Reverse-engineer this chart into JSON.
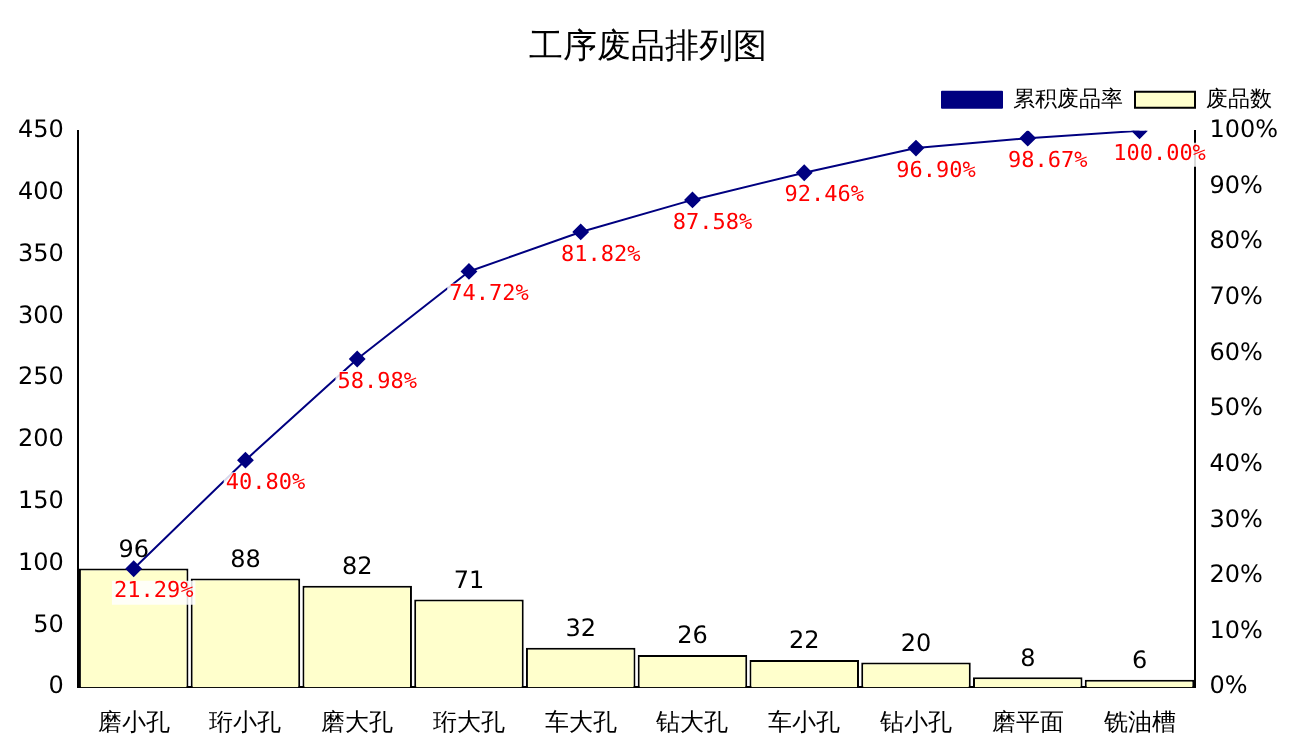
{
  "chart_data": {
    "type": "bar",
    "title": "工序废品排列图",
    "categories": [
      "磨小孔",
      "珩小孔",
      "磨大孔",
      "珩大孔",
      "车大孔",
      "钻大孔",
      "车小孔",
      "钻小孔",
      "磨平面",
      "铣油槽"
    ],
    "series": [
      {
        "name": "废品数",
        "color": "#ffffcc",
        "values": [
          96,
          88,
          82,
          71,
          32,
          26,
          22,
          20,
          8,
          6
        ],
        "value_labels": [
          "96",
          "88",
          "82",
          "71",
          "32",
          "26",
          "22",
          "20",
          "8",
          "6"
        ]
      },
      {
        "name": "累积废品率",
        "type": "line",
        "axis": "y2",
        "color": "#000080",
        "values": [
          21.29,
          40.8,
          58.98,
          74.72,
          81.82,
          87.58,
          92.46,
          96.9,
          98.67,
          100.0
        ],
        "value_labels": [
          "21.29%",
          "40.80%",
          "58.98%",
          "74.72%",
          "81.82%",
          "87.58%",
          "92.46%",
          "96.90%",
          "98.67%",
          "100.00%"
        ]
      }
    ],
    "ylim": [
      0,
      450
    ],
    "yticks": [
      0,
      50,
      100,
      150,
      200,
      250,
      300,
      350,
      400,
      450
    ],
    "y2lim": [
      0,
      100
    ],
    "y2ticks": [
      {
        "value": 0,
        "label": "0%"
      },
      {
        "value": 10,
        "label": "10%"
      },
      {
        "value": 20,
        "label": "20%"
      },
      {
        "value": 30,
        "label": "30%"
      },
      {
        "value": 40,
        "label": "40%"
      },
      {
        "value": 50,
        "label": "50%"
      },
      {
        "value": 60,
        "label": "60%"
      },
      {
        "value": 70,
        "label": "70%"
      },
      {
        "value": 80,
        "label": "80%"
      },
      {
        "value": 90,
        "label": "90%"
      },
      {
        "value": 100,
        "label": "100%"
      }
    ],
    "grid": false,
    "legend": "top right",
    "marker": "diamond",
    "line_style": "solid"
  }
}
